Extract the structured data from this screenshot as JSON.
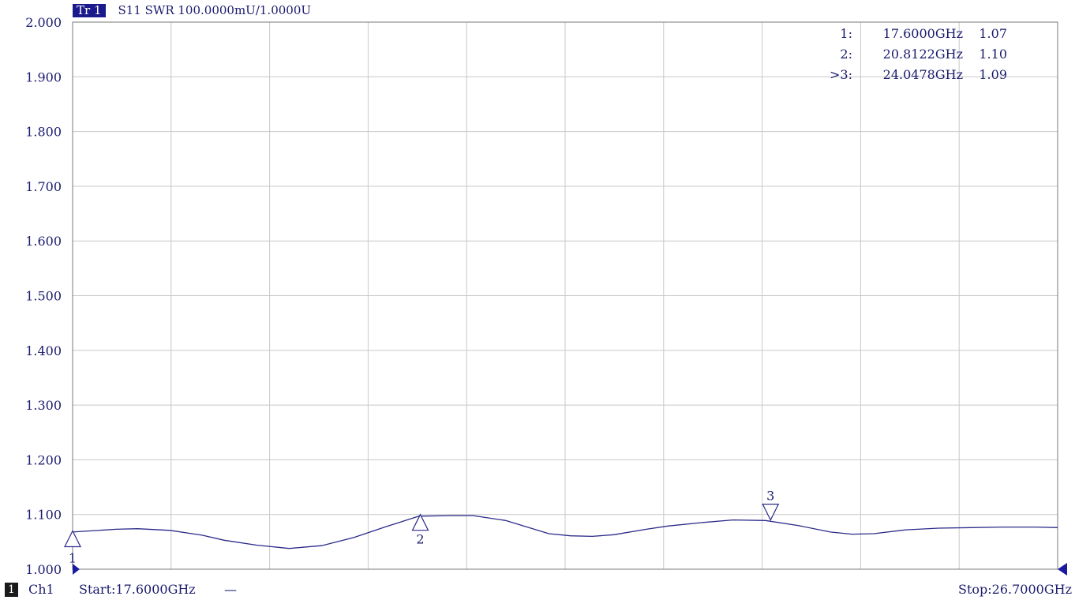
{
  "trace": {
    "badge": "Tr 1",
    "info": "S11 SWR 100.0000mU/1.0000U"
  },
  "markers": [
    {
      "id": "1:",
      "freq": "17.6000GHz",
      "value": "1.07"
    },
    {
      "id": "2:",
      "freq": "20.8122GHz",
      "value": "1.10"
    },
    {
      "id": ">3:",
      "freq": "24.0478GHz",
      "value": "1.09"
    }
  ],
  "footer": {
    "channel_badge": "1",
    "channel": "Ch1",
    "start": "Start:17.6000GHz",
    "start_suffix": "—",
    "stop": "Stop:26.7000GHz"
  },
  "colors": {
    "trace": "#2a2a8a",
    "grid": "#c8c8c8",
    "text": "#1a1a6e",
    "badge": "#1a1a8c"
  },
  "chart_data": {
    "type": "line",
    "ylim": [
      1.0,
      2.0
    ],
    "xlim": [
      17.6,
      26.7
    ],
    "y_ticks": [
      "2.000",
      "1.900",
      "1.800",
      "1.700",
      "1.600",
      "1.500",
      "1.400",
      "1.300",
      "1.200",
      "1.100",
      "1.000"
    ],
    "x_divisions": 10,
    "grid": true,
    "series": [
      {
        "x": [
          17.6,
          18.0,
          18.2,
          18.5,
          18.8,
          19.0,
          19.3,
          19.6,
          19.9,
          20.2,
          20.5,
          20.8,
          21.1,
          21.3,
          21.6,
          21.8,
          22.0,
          22.2,
          22.4,
          22.6,
          22.9,
          23.1,
          23.4,
          23.7,
          24.0,
          24.3,
          24.6,
          24.8,
          25.0,
          25.3,
          25.6,
          25.9,
          26.2,
          26.5,
          26.7
        ],
        "y": [
          1.068,
          1.073,
          1.074,
          1.071,
          1.062,
          1.053,
          1.044,
          1.038,
          1.043,
          1.058,
          1.078,
          1.097,
          1.098,
          1.098,
          1.089,
          1.077,
          1.065,
          1.061,
          1.06,
          1.063,
          1.073,
          1.079,
          1.085,
          1.09,
          1.089,
          1.08,
          1.068,
          1.064,
          1.065,
          1.072,
          1.075,
          1.076,
          1.077,
          1.077,
          1.076
        ]
      }
    ],
    "marker_points": [
      {
        "label": "1",
        "x": 17.6,
        "y": 1.07,
        "dir": "up"
      },
      {
        "label": "2",
        "x": 20.8122,
        "y": 1.1,
        "dir": "up"
      },
      {
        "label": "3",
        "x": 24.0478,
        "y": 1.09,
        "dir": "down"
      }
    ]
  }
}
